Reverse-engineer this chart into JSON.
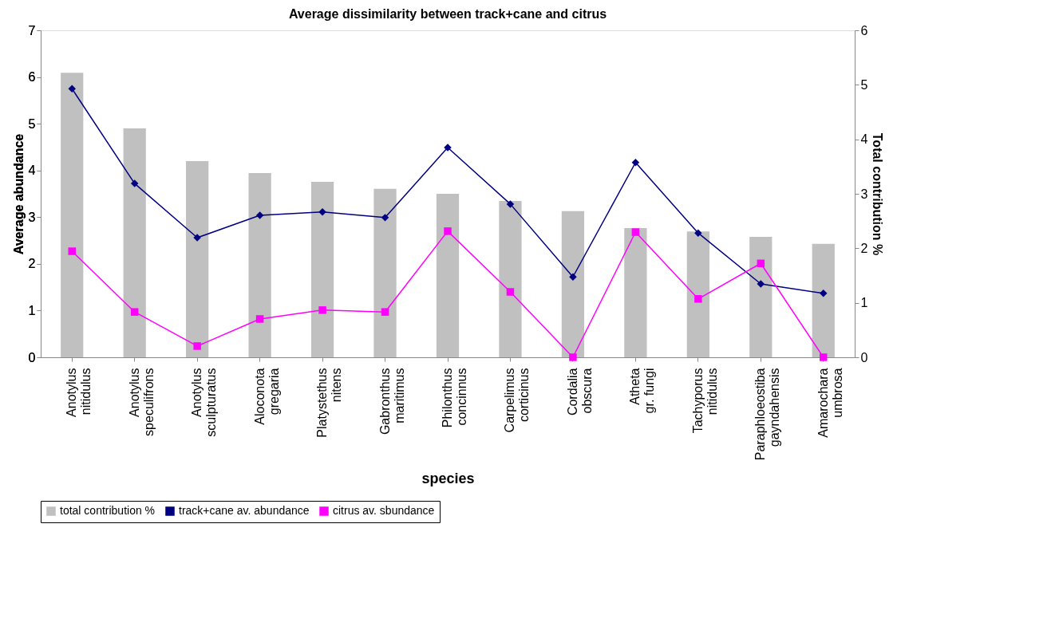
{
  "chart_data": {
    "type": "bar",
    "title": "Average dissimilarity between track+cane and citrus",
    "xlabel": "species",
    "ylabel": "Average abundance",
    "y2label": "Total contribution %",
    "categories": [
      "Anotylus nitidulus",
      "Anotylus speculifrons",
      "Anotylus sculpturatus",
      "Aloconota gregaria",
      "Platystethus nitens",
      "Gabronthus maritimus",
      "Philonthus concinnus",
      "Carpelimus corticinus",
      "Cordalia obscura",
      "Atheta gr. fungi",
      "Tachyporus nitidulus",
      "Paraphloeostiba gayndahensis",
      "Amarochara umbrosa"
    ],
    "series": [
      {
        "name": "total contribution %",
        "axis": "y2",
        "color": "#c0c0c0",
        "values": [
          5.22,
          4.2,
          3.6,
          3.38,
          3.22,
          3.09,
          3.0,
          2.87,
          2.68,
          2.37,
          2.31,
          2.21,
          2.08
        ]
      },
      {
        "name": "track+cane av. abundance",
        "type": "line",
        "marker": "diamond",
        "color": "#000080",
        "values": [
          5.75,
          3.72,
          2.56,
          3.04,
          3.11,
          2.99,
          4.49,
          3.28,
          1.72,
          4.17,
          2.66,
          1.57,
          1.37
        ]
      },
      {
        "name": "citrus av. sbundance",
        "type": "line",
        "marker": "square",
        "color": "#ff00ff",
        "values": [
          2.27,
          0.97,
          0.24,
          0.82,
          1.01,
          0.97,
          2.7,
          1.4,
          0,
          2.68,
          1.25,
          2.01,
          0
        ]
      }
    ],
    "ylim": [
      0,
      7
    ],
    "yticks": [
      0,
      1,
      2,
      3,
      4,
      5,
      6,
      7
    ],
    "y2lim": [
      0,
      6
    ],
    "y2ticks": [
      0,
      1,
      2,
      3,
      4,
      5,
      6
    ],
    "grid": false,
    "legend": "bottom"
  }
}
